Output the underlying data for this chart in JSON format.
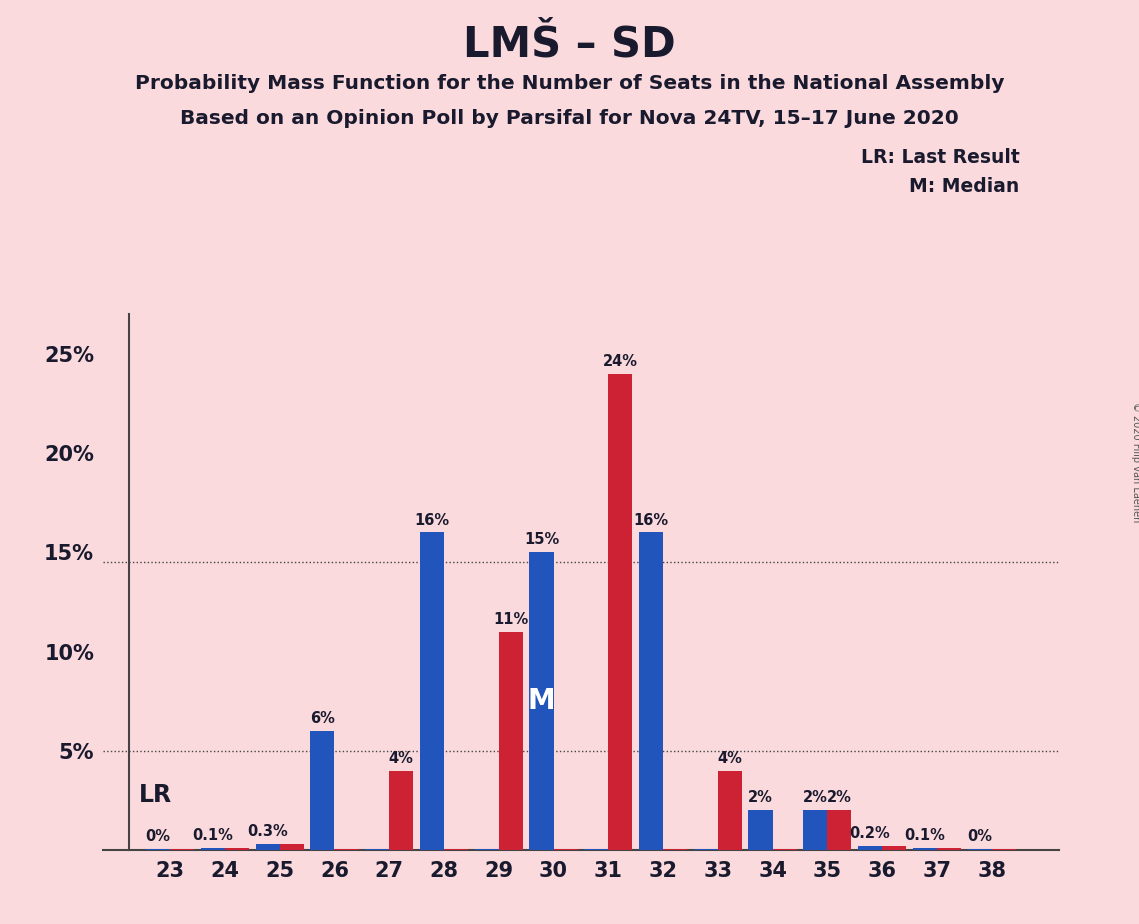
{
  "title": "LMŠ – SD",
  "subtitle1": "Probability Mass Function for the Number of Seats in the National Assembly",
  "subtitle2": "Based on an Opinion Poll by Parsifal for Nova 24TV, 15–17 June 2020",
  "copyright": "© 2020 Filip van Laenen",
  "seats": [
    23,
    24,
    25,
    26,
    27,
    28,
    29,
    30,
    31,
    32,
    33,
    34,
    35,
    36,
    37,
    38
  ],
  "blue_values": [
    0.05,
    0.1,
    0.3,
    6.0,
    0.05,
    16.0,
    0.05,
    15.0,
    0.05,
    16.0,
    0.05,
    2.0,
    2.0,
    0.2,
    0.1,
    0.05
  ],
  "red_values": [
    0.05,
    0.1,
    0.3,
    0.05,
    4.0,
    0.05,
    11.0,
    0.05,
    24.0,
    0.05,
    4.0,
    0.05,
    2.0,
    0.2,
    0.1,
    0.05
  ],
  "blue_labels": [
    "0%",
    "0.1%",
    "0.3%",
    "6%",
    "",
    "16%",
    "",
    "15%",
    "",
    "16%",
    "",
    "2%",
    "2%",
    "0.2%",
    "0.1%",
    "0%"
  ],
  "red_labels": [
    "",
    "",
    "",
    "",
    "4%",
    "",
    "11%",
    "",
    "24%",
    "",
    "4%",
    "",
    "2%",
    "",
    "",
    ""
  ],
  "blue_color": "#2255bb",
  "red_color": "#cc2233",
  "background_color": "#fadadd",
  "median_seat_idx": 7,
  "dotted_lines": [
    5.0,
    14.5
  ],
  "lr_label": "LR",
  "median_label": "M",
  "legend_text1": "LR: Last Result",
  "legend_text2": "M: Median",
  "ylim": [
    0,
    27
  ],
  "yticks": [
    0,
    5,
    10,
    15,
    20,
    25
  ],
  "ytick_labels": [
    "",
    "5%",
    "10%",
    "15%",
    "20%",
    "25%"
  ]
}
